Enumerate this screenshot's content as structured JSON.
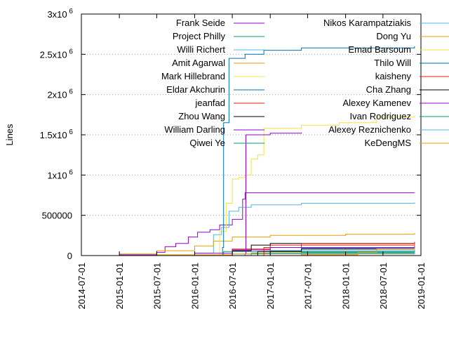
{
  "chart_data": {
    "type": "line",
    "ylabel": "Lines",
    "xlabel": "",
    "ylim": [
      0,
      3000000
    ],
    "xlim": [
      "2014-07-01",
      "2019-01-01"
    ],
    "x_ticks": [
      "2014-07-01",
      "2015-01-01",
      "2015-07-01",
      "2016-01-01",
      "2016-07-01",
      "2017-01-01",
      "2017-07-01",
      "2018-01-01",
      "2018-07-01",
      "2019-01-01"
    ],
    "y_ticks": [
      {
        "value": 0,
        "label": "0"
      },
      {
        "value": 500000,
        "label": "500000"
      },
      {
        "value": 1000000,
        "label": "1x10",
        "exp": "6"
      },
      {
        "value": 1500000,
        "label": "1.5x10",
        "exp": "6"
      },
      {
        "value": 2000000,
        "label": "2x10",
        "exp": "6"
      },
      {
        "value": 2500000,
        "label": "2.5x10",
        "exp": "6"
      },
      {
        "value": 3000000,
        "label": "3x10",
        "exp": "6"
      }
    ],
    "grid": "y-dotted",
    "legend_position": "inside-top",
    "series": [
      {
        "name": "Frank Seide",
        "color": "#9400d3",
        "points": [
          [
            "2014-10-15",
            0
          ],
          [
            "2015-01-01",
            10000
          ],
          [
            "2015-07-01",
            40000
          ],
          [
            "2015-08-10",
            110000
          ],
          [
            "2015-10-01",
            150000
          ],
          [
            "2015-12-01",
            230000
          ],
          [
            "2016-01-15",
            290000
          ],
          [
            "2016-03-15",
            320000
          ],
          [
            "2016-05-01",
            380000
          ],
          [
            "2016-07-01",
            450000
          ],
          [
            "2016-08-20",
            700000
          ],
          [
            "2016-09-01",
            780000
          ],
          [
            "2018-12-01",
            780000
          ]
        ]
      },
      {
        "name": "Project Philly",
        "color": "#009e73",
        "points": [
          [
            "2016-01-01",
            0
          ],
          [
            "2016-05-15",
            0
          ],
          [
            "2016-05-20",
            50000
          ],
          [
            "2018-12-01",
            50000
          ]
        ]
      },
      {
        "name": "Willi Richert",
        "color": "#56b4e9",
        "points": [
          [
            "2015-06-01",
            0
          ],
          [
            "2016-01-01",
            30000
          ],
          [
            "2016-04-01",
            260000
          ],
          [
            "2016-05-10",
            350000
          ],
          [
            "2016-06-15",
            550000
          ],
          [
            "2016-08-01",
            600000
          ],
          [
            "2016-10-01",
            630000
          ],
          [
            "2017-06-01",
            650000
          ],
          [
            "2018-12-01",
            660000
          ]
        ]
      },
      {
        "name": "Amit Agarwal",
        "color": "#e69f00",
        "points": [
          [
            "2014-10-01",
            0
          ],
          [
            "2015-01-01",
            20000
          ],
          [
            "2015-07-01",
            60000
          ],
          [
            "2016-01-01",
            120000
          ],
          [
            "2016-04-01",
            180000
          ],
          [
            "2016-07-01",
            230000
          ],
          [
            "2017-01-01",
            250000
          ],
          [
            "2018-01-01",
            265000
          ],
          [
            "2018-12-01",
            280000
          ]
        ]
      },
      {
        "name": "Mark Hillebrand",
        "color": "#f0e442",
        "points": [
          [
            "2015-09-01",
            0
          ],
          [
            "2016-05-01",
            300000
          ],
          [
            "2016-06-01",
            650000
          ],
          [
            "2016-07-01",
            950000
          ],
          [
            "2016-08-01",
            970000
          ],
          [
            "2016-09-01",
            1000000
          ],
          [
            "2016-10-01",
            1200000
          ],
          [
            "2016-11-01",
            1250000
          ],
          [
            "2016-12-01",
            1580000
          ],
          [
            "2017-06-01",
            1620000
          ],
          [
            "2017-12-01",
            1650000
          ],
          [
            "2018-06-01",
            1720000
          ],
          [
            "2018-12-01",
            1740000
          ]
        ]
      },
      {
        "name": "Eldar Akchurin",
        "color": "#0072b2",
        "points": [
          [
            "2016-01-01",
            0
          ],
          [
            "2016-05-15",
            100000
          ],
          [
            "2016-05-20",
            1650000
          ],
          [
            "2016-06-10",
            1650000
          ],
          [
            "2016-06-15",
            2450000
          ],
          [
            "2016-09-01",
            2500000
          ],
          [
            "2016-12-01",
            2550000
          ],
          [
            "2017-06-01",
            2580000
          ],
          [
            "2018-12-01",
            2600000
          ]
        ]
      },
      {
        "name": "jeanfad",
        "color": "#e51e10",
        "points": [
          [
            "2016-01-01",
            0
          ],
          [
            "2016-07-01",
            80000
          ],
          [
            "2017-01-01",
            130000
          ],
          [
            "2018-12-01",
            140000
          ]
        ]
      },
      {
        "name": "Zhou Wang",
        "color": "#000000",
        "points": [
          [
            "2016-01-01",
            0
          ],
          [
            "2016-07-01",
            60000
          ],
          [
            "2016-10-01",
            130000
          ],
          [
            "2017-01-01",
            150000
          ],
          [
            "2018-12-01",
            160000
          ]
        ]
      },
      {
        "name": "William Darling",
        "color": "#9400d3",
        "points": [
          [
            "2016-03-01",
            0
          ],
          [
            "2016-09-01",
            20000
          ],
          [
            "2016-09-05",
            1500000
          ],
          [
            "2017-01-01",
            1520000
          ],
          [
            "2017-06-01",
            1530000
          ]
        ]
      },
      {
        "name": "Qiwei Ye",
        "color": "#009e73",
        "points": [
          [
            "2016-06-01",
            0
          ],
          [
            "2016-10-01",
            30000
          ],
          [
            "2018-12-01",
            40000
          ]
        ]
      },
      {
        "name": "Nikos Karampatziakis",
        "color": "#56b4e9",
        "points": [
          [
            "2016-01-01",
            0
          ],
          [
            "2016-07-01",
            20000
          ],
          [
            "2017-01-01",
            60000
          ],
          [
            "2018-12-01",
            70000
          ]
        ]
      },
      {
        "name": "Dong Yu",
        "color": "#e69f00",
        "points": [
          [
            "2014-11-01",
            0
          ],
          [
            "2015-07-01",
            10000
          ],
          [
            "2016-07-01",
            20000
          ],
          [
            "2018-12-01",
            25000
          ]
        ]
      },
      {
        "name": "Emad Barsoum",
        "color": "#f0e442",
        "points": [
          [
            "2016-06-01",
            0
          ],
          [
            "2017-01-01",
            40000
          ],
          [
            "2018-01-01",
            100000
          ],
          [
            "2018-12-01",
            110000
          ]
        ]
      },
      {
        "name": "Thilo Will",
        "color": "#0072b2",
        "points": [
          [
            "2016-06-01",
            0
          ],
          [
            "2017-01-01",
            60000
          ],
          [
            "2017-06-01",
            90000
          ],
          [
            "2018-12-01",
            100000
          ]
        ]
      },
      {
        "name": "kaisheny",
        "color": "#e51e10",
        "points": [
          [
            "2016-08-01",
            0
          ],
          [
            "2016-12-01",
            100000
          ],
          [
            "2017-06-01",
            150000
          ],
          [
            "2018-12-01",
            170000
          ]
        ]
      },
      {
        "name": "Cha Zhang",
        "color": "#000000",
        "points": [
          [
            "2016-06-01",
            0
          ],
          [
            "2016-11-01",
            50000
          ],
          [
            "2017-06-01",
            80000
          ],
          [
            "2018-12-01",
            90000
          ]
        ]
      },
      {
        "name": "Alexey Kamenev",
        "color": "#9400d3",
        "points": [
          [
            "2015-08-01",
            0
          ],
          [
            "2016-01-01",
            30000
          ],
          [
            "2016-07-01",
            70000
          ],
          [
            "2017-01-01",
            100000
          ],
          [
            "2018-12-01",
            120000
          ]
        ]
      },
      {
        "name": "Ivan Rodriguez",
        "color": "#009e73",
        "points": [
          [
            "2016-10-01",
            0
          ],
          [
            "2017-06-01",
            40000
          ],
          [
            "2018-12-01",
            60000
          ]
        ]
      },
      {
        "name": "Alexey Reznichenko",
        "color": "#56b4e9",
        "points": [
          [
            "2016-06-01",
            0
          ],
          [
            "2017-01-01",
            25000
          ],
          [
            "2018-12-01",
            50000
          ]
        ]
      },
      {
        "name": "KeDengMS",
        "color": "#e69f00",
        "points": [
          [
            "2017-01-01",
            0
          ],
          [
            "2017-06-01",
            10000
          ],
          [
            "2018-03-01",
            40000
          ],
          [
            "2018-06-01",
            80000
          ],
          [
            "2018-12-01",
            100000
          ]
        ]
      }
    ]
  }
}
